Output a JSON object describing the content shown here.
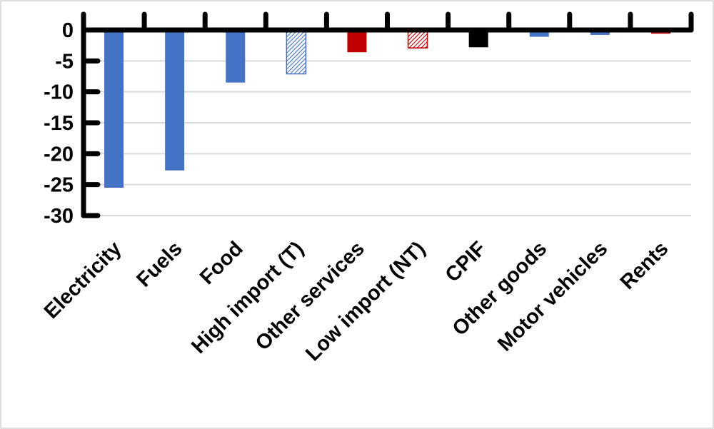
{
  "chart_data": {
    "type": "bar",
    "title": "",
    "xlabel": "",
    "ylabel": "",
    "ylim": [
      -30,
      0
    ],
    "yticks": [
      0,
      -5,
      -10,
      -15,
      -20,
      -25,
      -30
    ],
    "grid": true,
    "categories": [
      "Electricity",
      "Fuels",
      "Food",
      "High import (T)",
      "Other services",
      "Low import (NT)",
      "CPIF",
      "Other goods",
      "Motor vehicles",
      "Rents"
    ],
    "values": [
      -25.5,
      -22.7,
      -8.5,
      -7.1,
      -3.6,
      -2.9,
      -2.8,
      -1.1,
      -0.8,
      -0.6
    ],
    "bar_styles": [
      "solid",
      "solid",
      "solid",
      "hatched",
      "solid",
      "hatched",
      "solid",
      "solid",
      "solid",
      "solid"
    ],
    "bar_colors": [
      "#4472C4",
      "#4472C4",
      "#4472C4",
      "#4472C4",
      "#C00000",
      "#C00000",
      "#000000",
      "#4472C4",
      "#4472C4",
      "#C00000"
    ]
  }
}
